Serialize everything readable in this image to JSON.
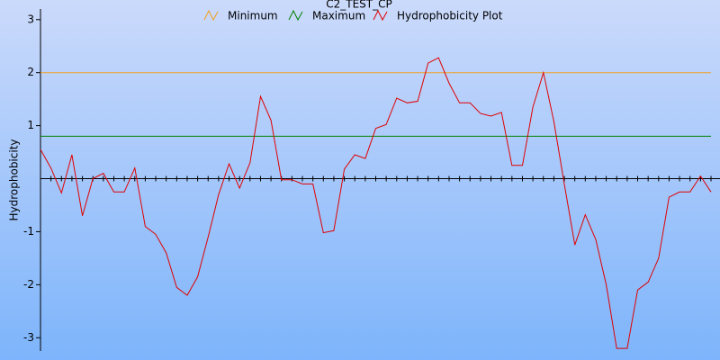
{
  "chart_data": {
    "type": "line",
    "title": "C2_TEST_CP",
    "ylabel": "Hydrophobicity",
    "ylim": [
      -3.25,
      3.2
    ],
    "yticks": [
      -3,
      -2,
      -1,
      1,
      2,
      3
    ],
    "references": [
      {
        "name": "Minimum",
        "color": "#f0a020",
        "value": 2
      },
      {
        "name": "Maximum",
        "color": "#008000",
        "value": 0.8
      }
    ],
    "series": [
      {
        "name": "Hydrophobicity Plot",
        "color": "#e00000",
        "values": [
          0.55,
          0.2,
          -0.27,
          0.45,
          -0.7,
          0,
          0.1,
          -0.25,
          -0.25,
          0.2,
          -0.9,
          -1.05,
          -1.4,
          -2.05,
          -2.2,
          -1.85,
          -1.1,
          -0.3,
          0.28,
          -0.18,
          0.3,
          1.55,
          1.1,
          -0.02,
          -0.02,
          -0.1,
          -0.1,
          -1.02,
          -0.98,
          0.18,
          0.45,
          0.38,
          0.95,
          1.02,
          1.52,
          1.43,
          1.46,
          2.18,
          2.28,
          1.8,
          1.43,
          1.43,
          1.23,
          1.18,
          1.25,
          0.25,
          0.25,
          1.35,
          2.0,
          1.08,
          -0.1,
          -1.25,
          -0.68,
          -1.15,
          -2.0,
          -3.2,
          -3.2,
          -2.1,
          -1.95,
          -1.5,
          -0.35,
          -0.25,
          -0.25,
          0.05,
          -0.25
        ]
      }
    ]
  }
}
